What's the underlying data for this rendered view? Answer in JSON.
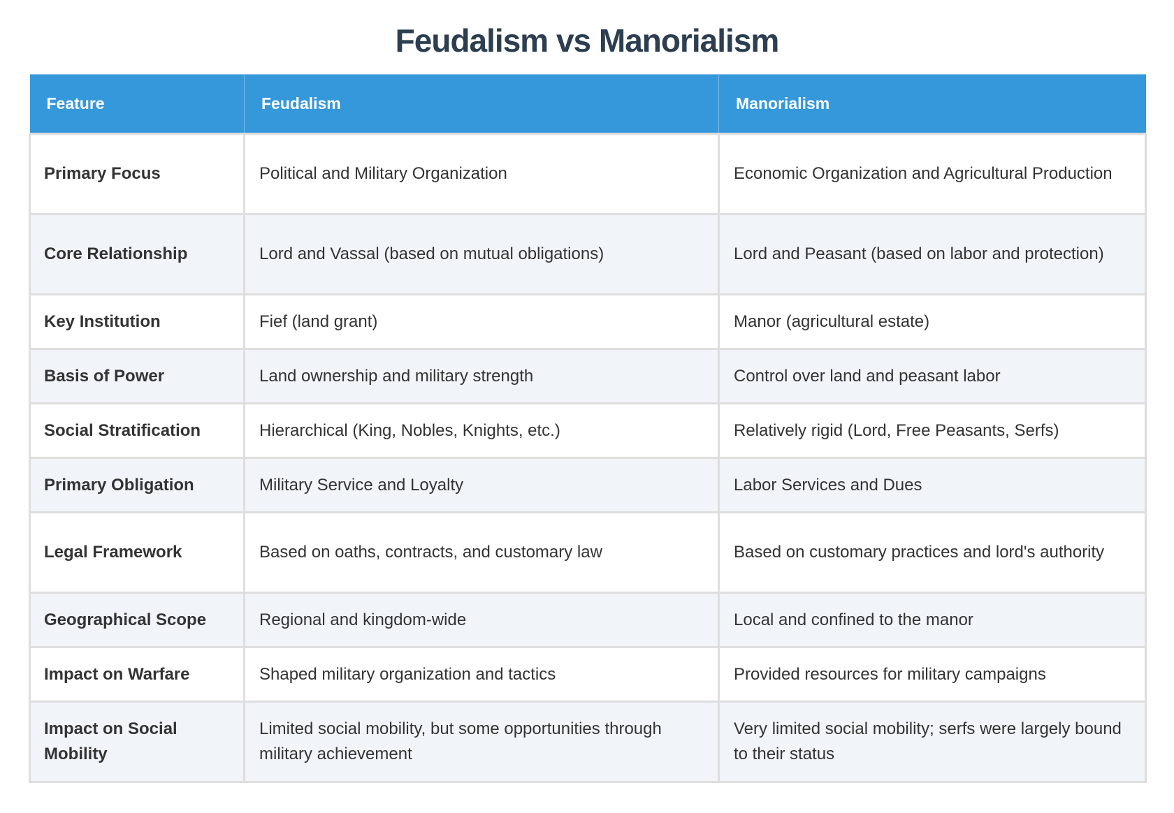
{
  "page": {
    "title": "Feudalism vs Manorialism"
  },
  "colors": {
    "header_bg": "#3498db",
    "header_text": "#ffffff",
    "title": "#2c3e50",
    "row_alt_bg": "#f1f4f9",
    "border": "#dedede"
  },
  "table": {
    "headers": [
      "Feature",
      "Feudalism",
      "Manorialism"
    ],
    "rows": [
      {
        "feature": "Primary Focus",
        "feudalism": "Political and Military Organization",
        "manorialism": "Economic Organization and Agricultural Production"
      },
      {
        "feature": "Core Relationship",
        "feudalism": "Lord and Vassal (based on mutual obligations)",
        "manorialism": "Lord and Peasant (based on labor and protection)"
      },
      {
        "feature": "Key Institution",
        "feudalism": "Fief (land grant)",
        "manorialism": "Manor (agricultural estate)"
      },
      {
        "feature": "Basis of Power",
        "feudalism": "Land ownership and military strength",
        "manorialism": "Control over land and peasant labor"
      },
      {
        "feature": "Social Stratification",
        "feudalism": "Hierarchical (King, Nobles, Knights, etc.)",
        "manorialism": "Relatively rigid (Lord, Free Peasants, Serfs)"
      },
      {
        "feature": "Primary Obligation",
        "feudalism": "Military Service and Loyalty",
        "manorialism": "Labor Services and Dues"
      },
      {
        "feature": "Legal Framework",
        "feudalism": "Based on oaths, contracts, and customary law",
        "manorialism": "Based on customary practices and lord's authority"
      },
      {
        "feature": "Geographical Scope",
        "feudalism": "Regional and kingdom-wide",
        "manorialism": "Local and confined to the manor"
      },
      {
        "feature": "Impact on Warfare",
        "feudalism": "Shaped military organization and tactics",
        "manorialism": "Provided resources for military campaigns"
      },
      {
        "feature": "Impact on Social Mobility",
        "feudalism": "Limited social mobility, but some opportunities through military achievement",
        "manorialism": "Very limited social mobility; serfs were largely bound to their status"
      }
    ]
  }
}
